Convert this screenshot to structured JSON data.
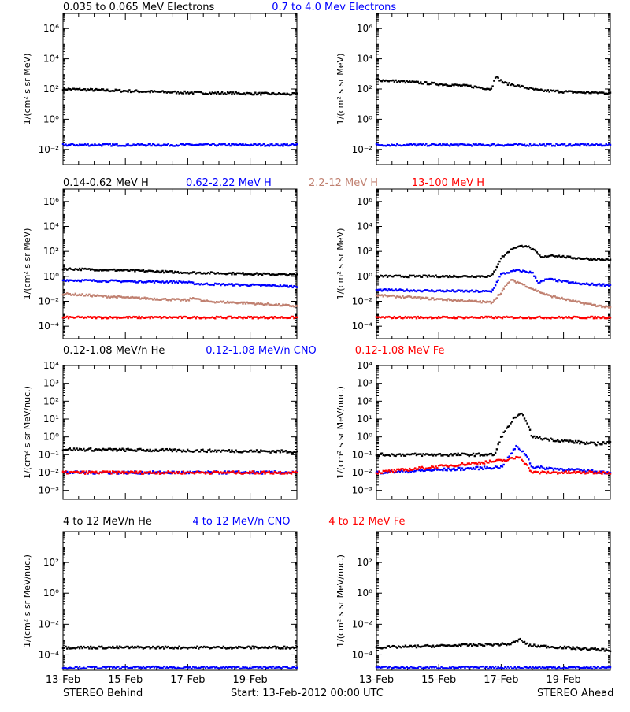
{
  "chart_data": {
    "type": "scatter",
    "footer": {
      "left": "STEREO Behind",
      "center": "Start: 13-Feb-2012 00:00 UTC",
      "right": "STEREO Ahead"
    },
    "x_ticks": [
      "13-Feb",
      "15-Feb",
      "17-Feb",
      "19-Feb"
    ],
    "x_range_days": [
      13,
      20.5
    ],
    "rows": [
      {
        "row_title": [
          {
            "text": "0.035 to 0.065 MeV Electrons",
            "color": "#000000"
          },
          {
            "text": "0.7 to 4.0 Mev Electrons",
            "color": "#0000ff"
          }
        ],
        "ylabel": "1/(cm² s sr MeV)",
        "ylog_range": [
          -3,
          7
        ],
        "y_ticks": [
          "10⁻²",
          "10⁰",
          "10²",
          "10⁴",
          "10⁶"
        ],
        "panels": {
          "behind": {
            "series": [
              {
                "name": "0.035 to 0.065 MeV Electrons",
                "color": "#000000",
                "points": [
                  [
                    13.0,
                    100
                  ],
                  [
                    14.5,
                    80
                  ],
                  [
                    16.0,
                    65
                  ],
                  [
                    17.5,
                    55
                  ],
                  [
                    19.0,
                    50
                  ],
                  [
                    20.5,
                    45
                  ]
                ]
              },
              {
                "name": "0.7 to 4.0 Mev Electrons",
                "color": "#0000ff",
                "points": [
                  [
                    13.0,
                    0.02
                  ],
                  [
                    20.5,
                    0.02
                  ]
                ]
              }
            ]
          },
          "ahead": {
            "series": [
              {
                "name": "0.035 to 0.065 MeV Electrons",
                "color": "#000000",
                "points": [
                  [
                    13.0,
                    400
                  ],
                  [
                    14.5,
                    250
                  ],
                  [
                    16.0,
                    150
                  ],
                  [
                    16.7,
                    100
                  ],
                  [
                    16.8,
                    700
                  ],
                  [
                    17.1,
                    250
                  ],
                  [
                    17.6,
                    150
                  ],
                  [
                    18.2,
                    80
                  ],
                  [
                    19.5,
                    60
                  ],
                  [
                    20.5,
                    55
                  ]
                ]
              },
              {
                "name": "0.7 to 4.0 Mev Electrons",
                "color": "#0000ff",
                "points": [
                  [
                    13.0,
                    0.02
                  ],
                  [
                    20.5,
                    0.02
                  ]
                ]
              }
            ]
          }
        }
      },
      {
        "row_title": [
          {
            "text": "0.14-0.62 MeV H",
            "color": "#000000"
          },
          {
            "text": "0.62-2.22 MeV H",
            "color": "#0000ff"
          },
          {
            "text": "2.2-12 MeV H",
            "color": "#c08070"
          },
          {
            "text": "13-100 MeV H",
            "color": "#ff0000"
          }
        ],
        "ylabel": "1/(cm² s sr MeV)",
        "ylog_range": [
          -5,
          7
        ],
        "y_ticks": [
          "10⁻⁴",
          "10⁻²",
          "10⁰",
          "10²",
          "10⁴",
          "10⁶"
        ],
        "panels": {
          "behind": {
            "series": [
              {
                "name": "0.14-0.62 MeV H",
                "color": "#000000",
                "points": [
                  [
                    13.0,
                    4
                  ],
                  [
                    15.0,
                    3
                  ],
                  [
                    17.0,
                    2
                  ],
                  [
                    19.0,
                    1.6
                  ],
                  [
                    20.5,
                    1.3
                  ]
                ]
              },
              {
                "name": "0.62-2.22 MeV H",
                "color": "#0000ff",
                "points": [
                  [
                    13.0,
                    0.5
                  ],
                  [
                    15.0,
                    0.4
                  ],
                  [
                    16.9,
                    0.35
                  ],
                  [
                    17.3,
                    0.25
                  ],
                  [
                    19.0,
                    0.2
                  ],
                  [
                    20.5,
                    0.15
                  ]
                ]
              },
              {
                "name": "2.2-12 MeV H",
                "color": "#c08070",
                "points": [
                  [
                    13.0,
                    0.04
                  ],
                  [
                    15.0,
                    0.02
                  ],
                  [
                    17.0,
                    0.012
                  ],
                  [
                    17.2,
                    0.02
                  ],
                  [
                    17.5,
                    0.01
                  ],
                  [
                    19.0,
                    0.007
                  ],
                  [
                    20.5,
                    0.004
                  ]
                ]
              },
              {
                "name": "13-100 MeV H",
                "color": "#ff0000",
                "points": [
                  [
                    13.0,
                    0.0005
                  ],
                  [
                    20.5,
                    0.0005
                  ]
                ]
              }
            ]
          },
          "ahead": {
            "series": [
              {
                "name": "0.14-0.62 MeV H",
                "color": "#000000",
                "points": [
                  [
                    13.0,
                    1
                  ],
                  [
                    16.7,
                    1
                  ],
                  [
                    17.0,
                    30
                  ],
                  [
                    17.4,
                    200
                  ],
                  [
                    17.8,
                    300
                  ],
                  [
                    18.1,
                    100
                  ],
                  [
                    18.3,
                    30
                  ],
                  [
                    18.6,
                    50
                  ],
                  [
                    19.3,
                    30
                  ],
                  [
                    20.5,
                    20
                  ]
                ]
              },
              {
                "name": "0.62-2.22 MeV H",
                "color": "#0000ff",
                "points": [
                  [
                    13.0,
                    0.08
                  ],
                  [
                    16.7,
                    0.06
                  ],
                  [
                    17.0,
                    1.5
                  ],
                  [
                    17.5,
                    3
                  ],
                  [
                    18.0,
                    2
                  ],
                  [
                    18.2,
                    0.3
                  ],
                  [
                    18.5,
                    0.6
                  ],
                  [
                    19.5,
                    0.25
                  ],
                  [
                    20.5,
                    0.2
                  ]
                ]
              },
              {
                "name": "2.2-12 MeV H",
                "color": "#c08070",
                "points": [
                  [
                    13.0,
                    0.03
                  ],
                  [
                    16.7,
                    0.008
                  ],
                  [
                    17.0,
                    0.05
                  ],
                  [
                    17.3,
                    0.5
                  ],
                  [
                    17.6,
                    0.3
                  ],
                  [
                    18.0,
                    0.1
                  ],
                  [
                    18.5,
                    0.03
                  ],
                  [
                    19.5,
                    0.008
                  ],
                  [
                    20.5,
                    0.003
                  ]
                ]
              },
              {
                "name": "13-100 MeV H",
                "color": "#ff0000",
                "points": [
                  [
                    13.0,
                    0.0005
                  ],
                  [
                    20.5,
                    0.0005
                  ]
                ]
              }
            ]
          }
        }
      },
      {
        "row_title": [
          {
            "text": "0.12-1.08 MeV/n He",
            "color": "#000000"
          },
          {
            "text": "0.12-1.08 MeV/n CNO",
            "color": "#0000ff"
          },
          {
            "text": "0.12-1.08 MeV Fe",
            "color": "#ff0000"
          }
        ],
        "ylabel": "1/(cm² s sr MeV/nuc.)",
        "ylog_range": [
          -3.5,
          4
        ],
        "y_ticks": [
          "10⁻³",
          "10⁻²",
          "10⁻¹",
          "10⁰",
          "10¹",
          "10²",
          "10³",
          "10⁴"
        ],
        "panels": {
          "behind": {
            "series": [
              {
                "name": "0.12-1.08 MeV/n He",
                "color": "#000000",
                "points": [
                  [
                    13.0,
                    0.2
                  ],
                  [
                    20.5,
                    0.15
                  ]
                ]
              },
              {
                "name": "0.12-1.08 MeV/n CNO",
                "color": "#0000ff",
                "points": [
                  [
                    13.0,
                    0.01
                  ],
                  [
                    20.5,
                    0.01
                  ]
                ]
              },
              {
                "name": "0.12-1.08 MeV Fe",
                "color": "#ff0000",
                "points": [
                  [
                    13.0,
                    0.01
                  ],
                  [
                    20.5,
                    0.01
                  ]
                ]
              }
            ]
          },
          "ahead": {
            "series": [
              {
                "name": "0.12-1.08 MeV/n He",
                "color": "#000000",
                "points": [
                  [
                    13.0,
                    0.1
                  ],
                  [
                    16.8,
                    0.1
                  ],
                  [
                    17.0,
                    1
                  ],
                  [
                    17.4,
                    10
                  ],
                  [
                    17.7,
                    20
                  ],
                  [
                    18.0,
                    1
                  ],
                  [
                    18.3,
                    0.8
                  ],
                  [
                    19.0,
                    0.6
                  ],
                  [
                    20.0,
                    0.4
                  ],
                  [
                    20.5,
                    0.5
                  ]
                ]
              },
              {
                "name": "0.12-1.08 MeV/n CNO",
                "color": "#0000ff",
                "points": [
                  [
                    13.0,
                    0.01
                  ],
                  [
                    17.0,
                    0.02
                  ],
                  [
                    17.5,
                    0.3
                  ],
                  [
                    17.8,
                    0.1
                  ],
                  [
                    18.0,
                    0.02
                  ],
                  [
                    20.5,
                    0.01
                  ]
                ]
              },
              {
                "name": "0.12-1.08 MeV Fe",
                "color": "#ff0000",
                "points": [
                  [
                    13.0,
                    0.01
                  ],
                  [
                    17.2,
                    0.05
                  ],
                  [
                    17.6,
                    0.08
                  ],
                  [
                    18.0,
                    0.01
                  ],
                  [
                    20.5,
                    0.01
                  ]
                ]
              }
            ]
          }
        }
      },
      {
        "row_title": [
          {
            "text": "4 to 12 MeV/n He",
            "color": "#000000"
          },
          {
            "text": "4 to 12 MeV/n CNO",
            "color": "#0000ff"
          },
          {
            "text": "4 to 12 MeV Fe",
            "color": "#ff0000"
          }
        ],
        "ylabel": "1/(cm² s sr MeV/nuc.)",
        "ylog_range": [
          -5,
          4
        ],
        "y_ticks": [
          "10⁻⁴",
          "10⁻²",
          "10⁰",
          "10²"
        ],
        "panels": {
          "behind": {
            "series": [
              {
                "name": "4 to 12 MeV/n He",
                "color": "#000000",
                "points": [
                  [
                    13.0,
                    0.0003
                  ],
                  [
                    20.5,
                    0.0003
                  ]
                ]
              },
              {
                "name": "4 to 12 MeV/n CNO",
                "color": "#0000ff",
                "points": [
                  [
                    13.0,
                    1.5e-05
                  ],
                  [
                    20.5,
                    1.5e-05
                  ]
                ]
              }
            ]
          },
          "ahead": {
            "series": [
              {
                "name": "4 to 12 MeV/n He",
                "color": "#000000",
                "points": [
                  [
                    13.0,
                    0.0003
                  ],
                  [
                    17.3,
                    0.0005
                  ],
                  [
                    17.6,
                    0.001
                  ],
                  [
                    17.9,
                    0.0004
                  ],
                  [
                    20.5,
                    0.0002
                  ]
                ]
              },
              {
                "name": "4 to 12 MeV/n CNO",
                "color": "#0000ff",
                "points": [
                  [
                    13.0,
                    1.5e-05
                  ],
                  [
                    20.5,
                    1.5e-05
                  ]
                ]
              }
            ]
          }
        }
      }
    ]
  }
}
